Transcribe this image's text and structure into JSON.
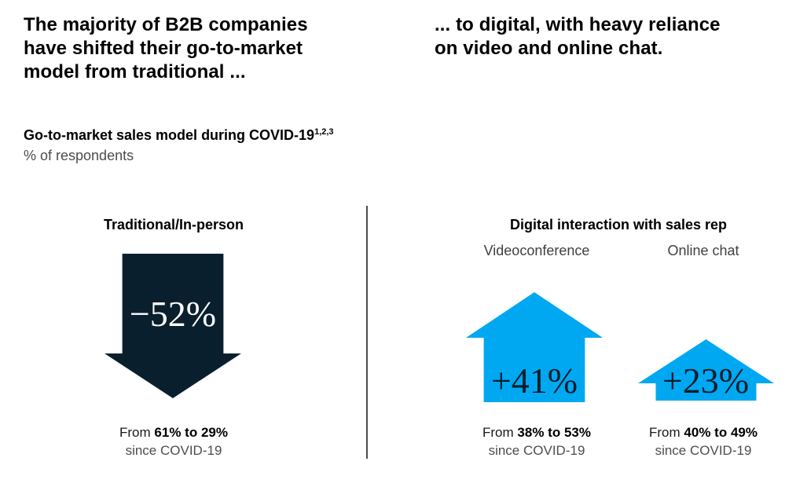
{
  "colors": {
    "navy": "#0A1F2E",
    "blue": "#00A8F1",
    "gray_text": "#4D4D4D",
    "divider": "#4D4D4D"
  },
  "headings": {
    "left_lines": [
      "The majority of B2B companies",
      "have shifted their go-to-market",
      "model from traditional ..."
    ],
    "right_lines": [
      "... to digital, with heavy reliance",
      "on video and online chat."
    ]
  },
  "subtitle": {
    "title": "Go-to-market sales model during COVID-19",
    "footnote_refs": "1,2,3",
    "unit": "% of respondents"
  },
  "chart_data": {
    "type": "pictogram-arrows",
    "title": "Go-to-market sales model during COVID-19",
    "unit": "% of respondents",
    "from_word": "From",
    "groups": [
      {
        "label": "Traditional/In-person",
        "sublabel": "",
        "direction": "down",
        "change_pct": -52,
        "value_label": "−52%",
        "from_pct": 61,
        "to_pct": 29,
        "range_label": "61% to 29%",
        "period_label": "since COVID-19",
        "arrow_color": "#0A1F2E"
      },
      {
        "label": "Digital interaction with sales rep",
        "sublabel": "Videoconference",
        "direction": "up",
        "change_pct": 41,
        "value_label": "+41%",
        "from_pct": 38,
        "to_pct": 53,
        "range_label": "38% to 53%",
        "period_label": "since COVID-19",
        "arrow_color": "#00A8F1"
      },
      {
        "label": "Digital interaction with sales rep",
        "sublabel": "Online chat",
        "direction": "up",
        "change_pct": 23,
        "value_label": "+23%",
        "from_pct": 40,
        "to_pct": 49,
        "range_label": "40% to 49%",
        "period_label": "since COVID-19",
        "arrow_color": "#00A8F1"
      }
    ]
  }
}
